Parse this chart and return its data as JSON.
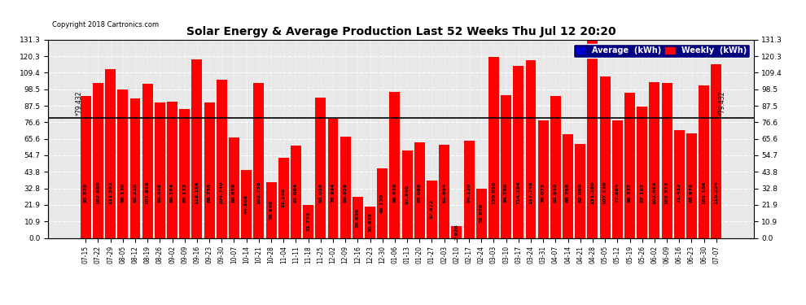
{
  "title": "Solar Energy & Average Production Last 52 Weeks Thu Jul 12 20:20",
  "copyright": "Copyright 2018 Cartronics.com",
  "average_value": 79.432,
  "bar_color": "#ff0000",
  "average_line_color": "#000000",
  "background_color": "#ffffff",
  "plot_bg_color": "#e8e8e8",
  "grid_color": "#aaaaaa",
  "yticks": [
    0.0,
    10.9,
    21.9,
    32.8,
    43.8,
    54.7,
    65.6,
    76.6,
    87.5,
    98.5,
    109.4,
    120.3,
    131.3
  ],
  "categories": [
    "07-15",
    "07-22",
    "07-29",
    "08-05",
    "08-12",
    "08-19",
    "08-26",
    "09-02",
    "09-09",
    "09-16",
    "09-23",
    "09-30",
    "10-07",
    "10-14",
    "10-21",
    "10-28",
    "11-04",
    "11-11",
    "11-18",
    "11-25",
    "12-02",
    "12-09",
    "12-16",
    "12-23",
    "12-30",
    "01-06",
    "01-13",
    "01-20",
    "01-27",
    "02-03",
    "02-10",
    "02-17",
    "02-24",
    "03-03",
    "03-10",
    "03-17",
    "03-24",
    "03-31",
    "04-07",
    "04-14",
    "04-21",
    "04-28",
    "05-05",
    "05-12",
    "05-19",
    "05-26",
    "06-02",
    "06-09",
    "06-16",
    "06-23",
    "06-30",
    "07-07"
  ],
  "values": [
    93.82,
    102.68,
    111.592,
    98.13,
    92.21,
    101.916,
    89.508,
    90.164,
    85.172,
    118.156,
    89.75,
    104.74,
    66.658,
    44.808,
    102.738,
    36.946,
    53.14,
    61.064,
    21.732,
    93.036,
    78.994,
    66.856,
    26.936,
    20.838,
    46.13,
    96.638,
    57.64,
    63.096,
    37.972,
    61.694,
    7.926,
    64.12,
    32.856,
    120.02,
    94.78,
    114.184,
    117.748,
    78.072,
    93.84,
    68.768,
    62.08,
    131.28,
    107.136,
    77.864,
    96.332,
    87.192,
    102.968,
    102.512,
    71.432,
    68.976,
    101.104,
    115.224
  ],
  "legend_avg_color": "#0000cc",
  "legend_weekly_color": "#ff0000",
  "ylim": [
    0,
    131.3
  ],
  "label_fontsize": 4.5,
  "tick_fontsize": 6.5,
  "xtick_fontsize": 5.5
}
